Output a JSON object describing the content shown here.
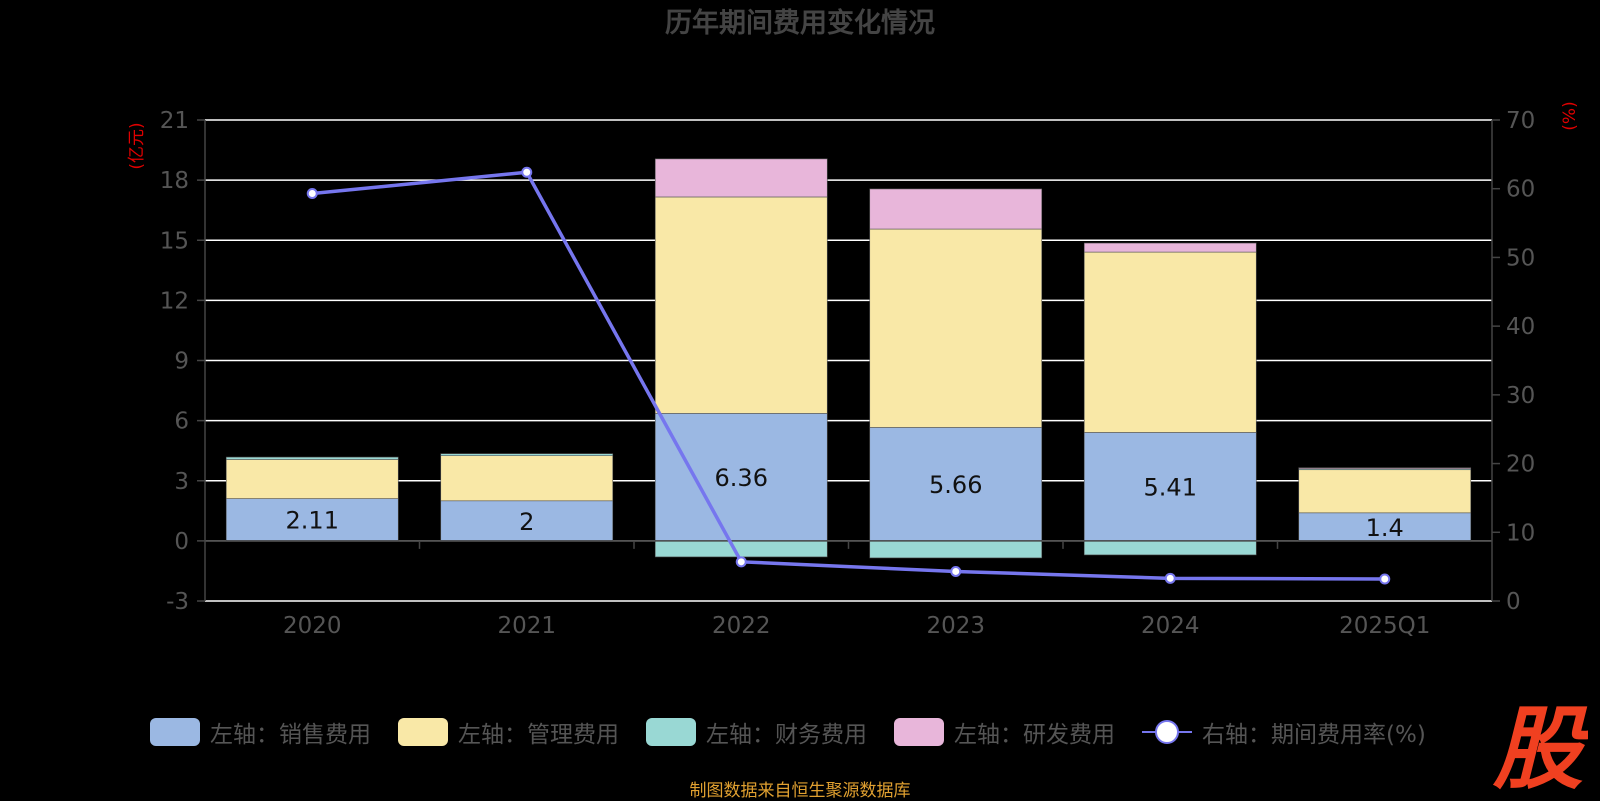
{
  "colors": {
    "sales": "#9bb8e3",
    "admin": "#f9e8a7",
    "finance": "#99d8d4",
    "rnd": "#e8b6da",
    "rate": "#7676ee",
    "axis_unit": "#e00000",
    "footer": "#e0a030",
    "logo": "#f04020",
    "tick": "#555555",
    "grid": "#ffffff"
  },
  "legend": {
    "sales": "左轴：销售费用",
    "admin": "左轴：管理费用",
    "finance": "左轴：财务费用",
    "rnd": "左轴：研发费用",
    "rate": "右轴：期间费用率(%)"
  },
  "footer": "制图数据来自恒生聚源数据库",
  "logo_text": "股",
  "chart_data": {
    "type": "bar",
    "title": "历年期间费用变化情况",
    "categories": [
      "2020",
      "2021",
      "2022",
      "2023",
      "2024",
      "2025Q1"
    ],
    "ylabel": "(亿元)",
    "y2label": "(%)",
    "ylim": [
      -3,
      21
    ],
    "yticks": [
      -3,
      0,
      3,
      6,
      9,
      12,
      15,
      18,
      21
    ],
    "y2lim": [
      0,
      70
    ],
    "y2ticks": [
      0,
      10,
      20,
      30,
      40,
      50,
      60,
      70
    ],
    "grid": true,
    "legend_position": "bottom",
    "stacked": true,
    "series": [
      {
        "name": "左轴：销售费用",
        "key": "sales",
        "values": [
          2.11,
          2,
          6.36,
          5.66,
          5.41,
          1.4
        ],
        "labels": [
          "2.11",
          "2",
          "6.36",
          "5.66",
          "5.41",
          "1.4"
        ]
      },
      {
        "name": "左轴：管理费用",
        "key": "admin",
        "values": [
          1.95,
          2.25,
          10.8,
          9.9,
          9.0,
          2.15
        ]
      },
      {
        "name": "左轴：财务费用",
        "key": "finance",
        "values": [
          0.12,
          0.1,
          -0.8,
          -0.85,
          -0.7,
          0.05
        ]
      },
      {
        "name": "左轴：研发费用",
        "key": "rnd",
        "values": [
          0,
          0,
          1.9,
          2.0,
          0.45,
          0.05
        ]
      },
      {
        "name": "右轴：期间费用率(%)",
        "key": "rate",
        "type": "line",
        "axis": "right",
        "values": [
          59.3,
          62.4,
          5.7,
          4.3,
          3.3,
          3.2
        ]
      }
    ]
  }
}
